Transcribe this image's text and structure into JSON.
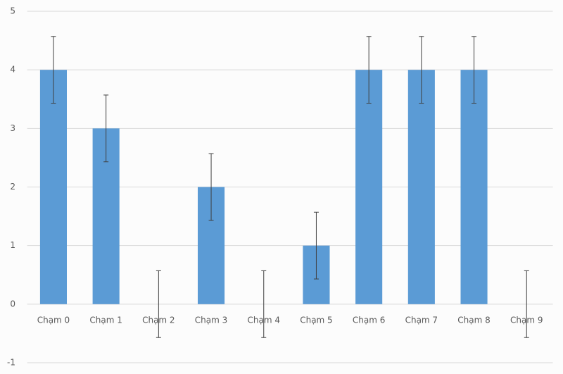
{
  "chart_data": {
    "type": "bar",
    "categories": [
      "Chạm 0",
      "Chạm 1",
      "Chạm 2",
      "Chạm 3",
      "Chạm 4",
      "Chạm 5",
      "Chạm 6",
      "Chạm 7",
      "Chạm 8",
      "Chạm 9"
    ],
    "values": [
      4,
      3,
      0,
      2,
      0,
      1,
      4,
      4,
      4,
      0
    ],
    "errors": [
      0.57,
      0.57,
      0.57,
      0.57,
      0.57,
      0.57,
      0.57,
      0.57,
      0.57,
      0.57
    ],
    "color": "#5b9bd5",
    "ylim": [
      -1,
      5
    ],
    "yticks": [
      -1,
      0,
      1,
      2,
      3,
      4,
      5
    ],
    "grid": true
  }
}
